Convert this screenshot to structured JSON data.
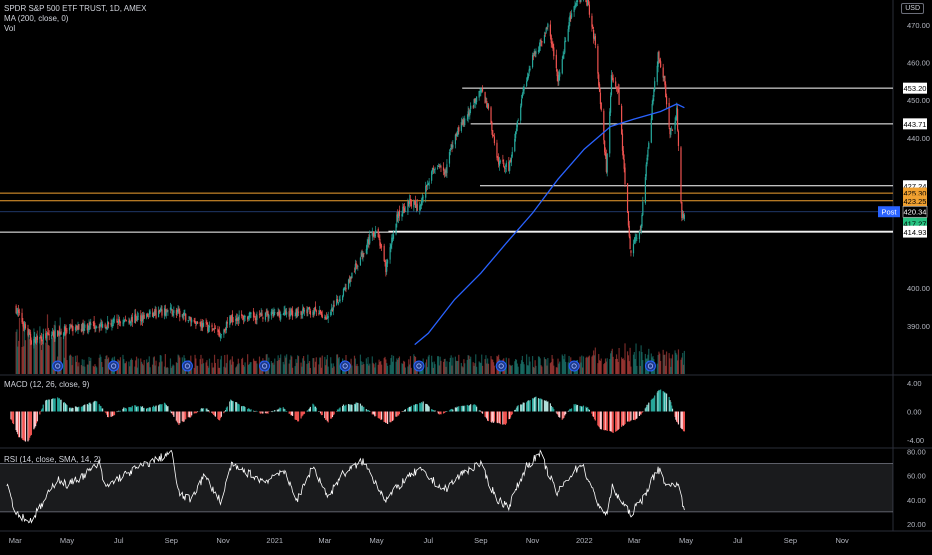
{
  "header": {
    "title": "SPDR S&P 500 ETF TRUST, 1D, AMEX",
    "indicator_ma": "MA (200, close, 0)",
    "indicator_vol": "Vol",
    "currency": "USD"
  },
  "macd_label": "MACD (12, 26, close, 9)",
  "rsi_label": "RSI (14, close, SMA, 14, 2)",
  "colors": {
    "up": "#26a69a",
    "down": "#ef5350",
    "ma": "#2962ff",
    "level_white": "#ffffff",
    "level_orange": "#f0a030",
    "level_blue": "#2a4a8a",
    "rsi_line": "#ffffff",
    "grid": "#1a1a1a"
  },
  "chart_data": [
    {
      "type": "candlestick",
      "x_ticks": [
        "Mar",
        "May",
        "Jul",
        "Sep",
        "Nov",
        "2021",
        "Mar",
        "May",
        "Jul",
        "Sep",
        "Nov",
        "2022",
        "Mar",
        "May",
        "Jul",
        "Sep",
        "Nov"
      ],
      "y_ticks": [
        390,
        400,
        410,
        420,
        430,
        440,
        450,
        460,
        470
      ],
      "y_tick_labels": [
        "390.00",
        "400.00",
        "",
        "",
        "",
        "440.00",
        "450.00",
        "460.00",
        "470.00"
      ],
      "ylim": [
        385,
        478
      ],
      "price_path": [
        [
          "2020-03-01",
          395
        ],
        [
          "2020-03-20",
          386
        ],
        [
          "2020-05-01",
          389
        ],
        [
          "2020-07-01",
          391
        ],
        [
          "2020-09-01",
          394
        ],
        [
          "2020-10-30",
          388
        ],
        [
          "2020-11-10",
          392
        ],
        [
          "2021-01-01",
          393
        ],
        [
          "2021-02-15",
          394
        ],
        [
          "2021-03-05",
          392
        ],
        [
          "2021-04-01",
          403
        ],
        [
          "2021-04-20",
          412
        ],
        [
          "2021-05-01",
          416
        ],
        [
          "2021-05-12",
          405
        ],
        [
          "2021-05-25",
          419
        ],
        [
          "2021-06-10",
          423
        ],
        [
          "2021-06-20",
          421
        ],
        [
          "2021-06-30",
          428
        ],
        [
          "2021-07-10",
          433
        ],
        [
          "2021-07-20",
          430
        ],
        [
          "2021-08-01",
          441
        ],
        [
          "2021-08-15",
          445
        ],
        [
          "2021-08-31",
          453
        ],
        [
          "2021-09-10",
          448
        ],
        [
          "2021-09-20",
          434
        ],
        [
          "2021-10-04",
          432
        ],
        [
          "2021-10-20",
          452
        ],
        [
          "2021-11-01",
          461
        ],
        [
          "2021-11-20",
          470
        ],
        [
          "2021-12-01",
          455
        ],
        [
          "2021-12-15",
          472
        ],
        [
          "2021-12-29",
          478
        ],
        [
          "2022-01-05",
          476
        ],
        [
          "2022-01-14",
          465
        ],
        [
          "2022-01-27",
          432
        ],
        [
          "2022-02-02",
          456
        ],
        [
          "2022-02-10",
          452
        ],
        [
          "2022-02-24",
          410
        ],
        [
          "2022-03-08",
          415
        ],
        [
          "2022-03-20",
          444
        ],
        [
          "2022-03-29",
          462
        ],
        [
          "2022-04-05",
          456
        ],
        [
          "2022-04-12",
          440
        ],
        [
          "2022-04-20",
          447
        ],
        [
          "2022-04-26",
          418
        ],
        [
          "2022-04-29",
          420.34
        ]
      ],
      "ma200_path": [
        [
          "2021-06-15",
          385
        ],
        [
          "2021-07-01",
          388
        ],
        [
          "2021-08-01",
          397
        ],
        [
          "2021-09-01",
          404
        ],
        [
          "2021-10-01",
          412
        ],
        [
          "2021-11-01",
          420
        ],
        [
          "2021-12-01",
          429
        ],
        [
          "2022-01-01",
          437
        ],
        [
          "2022-02-01",
          443
        ],
        [
          "2022-03-01",
          445
        ],
        [
          "2022-04-01",
          447
        ],
        [
          "2022-04-20",
          449
        ],
        [
          "2022-04-29",
          448
        ]
      ],
      "price_levels": [
        {
          "label": "453.20",
          "value": 453.2,
          "color": "white",
          "from": "2021-08-10"
        },
        {
          "label": "443.71",
          "value": 443.71,
          "color": "white",
          "from": "2021-08-20"
        },
        {
          "label": "427.24",
          "value": 427.24,
          "color": "white",
          "from": "2021-08-31"
        },
        {
          "label": "425.30",
          "value": 425.3,
          "color": "orange",
          "from": null
        },
        {
          "label": "423.25",
          "value": 423.25,
          "color": "orange",
          "from": null
        },
        {
          "label": "420.34",
          "value": 420.34,
          "color": "blue",
          "from": null,
          "badge": "Post"
        },
        {
          "label": "417.27",
          "value": 417.27,
          "color": "green",
          "from": null
        },
        {
          "label": "415.16",
          "value": 415.16,
          "color": "white",
          "from": "2021-05-15"
        },
        {
          "label": "414.93",
          "value": 414.93,
          "color": "white",
          "from": null
        }
      ],
      "event_markers": [
        "2020-04-20",
        "2020-06-25",
        "2020-09-20",
        "2020-12-20",
        "2021-03-25",
        "2021-06-20",
        "2021-09-25",
        "2021-12-20",
        "2022-03-20"
      ]
    },
    {
      "type": "histogram",
      "name": "MACD",
      "y_ticks": [
        4,
        0,
        -4
      ],
      "y_tick_labels": [
        "4.00",
        "0.00",
        "-4.00"
      ],
      "ylim": [
        -5,
        5
      ],
      "path": [
        [
          "2020-02-25",
          -1
        ],
        [
          "2020-03-05",
          -3.5
        ],
        [
          "2020-03-15",
          -4.5
        ],
        [
          "2020-03-25",
          -2
        ],
        [
          "2020-04-05",
          1.5
        ],
        [
          "2020-04-20",
          2
        ],
        [
          "2020-05-05",
          0.5
        ],
        [
          "2020-05-20",
          0.8
        ],
        [
          "2020-06-05",
          1.5
        ],
        [
          "2020-06-20",
          -1
        ],
        [
          "2020-07-05",
          0.4
        ],
        [
          "2020-07-20",
          0.8
        ],
        [
          "2020-08-05",
          0.5
        ],
        [
          "2020-08-25",
          1.2
        ],
        [
          "2020-09-10",
          -1.8
        ],
        [
          "2020-09-25",
          -0.6
        ],
        [
          "2020-10-10",
          0.6
        ],
        [
          "2020-10-28",
          -1.2
        ],
        [
          "2020-11-10",
          1.6
        ],
        [
          "2020-11-30",
          0.4
        ],
        [
          "2020-12-20",
          -0.4
        ],
        [
          "2021-01-10",
          0.6
        ],
        [
          "2021-01-28",
          -1.4
        ],
        [
          "2021-02-15",
          1
        ],
        [
          "2021-03-05",
          -1.5
        ],
        [
          "2021-03-20",
          0.8
        ],
        [
          "2021-04-10",
          1.2
        ],
        [
          "2021-05-01",
          -0.8
        ],
        [
          "2021-05-15",
          -1.8
        ],
        [
          "2021-06-05",
          0.5
        ],
        [
          "2021-06-25",
          1.3
        ],
        [
          "2021-07-15",
          -0.4
        ],
        [
          "2021-08-05",
          0.7
        ],
        [
          "2021-08-25",
          1
        ],
        [
          "2021-09-10",
          -1.4
        ],
        [
          "2021-09-30",
          -1.8
        ],
        [
          "2021-10-15",
          0.8
        ],
        [
          "2021-11-05",
          2
        ],
        [
          "2021-11-20",
          1.4
        ],
        [
          "2021-12-05",
          -1.2
        ],
        [
          "2021-12-20",
          1
        ],
        [
          "2022-01-05",
          0.6
        ],
        [
          "2022-01-20",
          -2.5
        ],
        [
          "2022-02-05",
          -3
        ],
        [
          "2022-02-20",
          -1.5
        ],
        [
          "2022-03-05",
          -1
        ],
        [
          "2022-03-20",
          1.5
        ],
        [
          "2022-04-01",
          3.2
        ],
        [
          "2022-04-10",
          2.4
        ],
        [
          "2022-04-20",
          -1.5
        ],
        [
          "2022-04-29",
          -2.8
        ]
      ]
    },
    {
      "type": "line",
      "name": "RSI",
      "y_ticks": [
        80,
        60,
        40,
        20
      ],
      "y_tick_labels": [
        "80.00",
        "60.00",
        "40.00",
        "20.00"
      ],
      "ylim": [
        15,
        82
      ],
      "band": [
        30,
        70
      ],
      "path": [
        [
          "2020-02-20",
          55
        ],
        [
          "2020-03-01",
          30
        ],
        [
          "2020-03-18",
          22
        ],
        [
          "2020-04-01",
          35
        ],
        [
          "2020-04-20",
          58
        ],
        [
          "2020-05-01",
          52
        ],
        [
          "2020-05-20",
          60
        ],
        [
          "2020-06-08",
          70
        ],
        [
          "2020-06-15",
          50
        ],
        [
          "2020-07-01",
          58
        ],
        [
          "2020-07-20",
          65
        ],
        [
          "2020-08-20",
          75
        ],
        [
          "2020-09-01",
          80
        ],
        [
          "2020-09-10",
          45
        ],
        [
          "2020-09-23",
          40
        ],
        [
          "2020-10-10",
          60
        ],
        [
          "2020-10-30",
          38
        ],
        [
          "2020-11-10",
          68
        ],
        [
          "2020-12-01",
          62
        ],
        [
          "2020-12-20",
          55
        ],
        [
          "2021-01-10",
          65
        ],
        [
          "2021-01-28",
          40
        ],
        [
          "2021-02-15",
          68
        ],
        [
          "2021-03-05",
          42
        ],
        [
          "2021-03-20",
          60
        ],
        [
          "2021-04-15",
          72
        ],
        [
          "2021-05-12",
          40
        ],
        [
          "2021-06-01",
          55
        ],
        [
          "2021-06-20",
          65
        ],
        [
          "2021-07-20",
          48
        ],
        [
          "2021-08-10",
          62
        ],
        [
          "2021-08-31",
          70
        ],
        [
          "2021-09-20",
          40
        ],
        [
          "2021-10-04",
          35
        ],
        [
          "2021-10-25",
          68
        ],
        [
          "2021-11-10",
          78
        ],
        [
          "2021-11-30",
          45
        ],
        [
          "2021-12-15",
          60
        ],
        [
          "2021-12-29",
          70
        ],
        [
          "2022-01-15",
          40
        ],
        [
          "2022-01-27",
          27
        ],
        [
          "2022-02-03",
          50
        ],
        [
          "2022-02-24",
          28
        ],
        [
          "2022-03-10",
          40
        ],
        [
          "2022-03-29",
          66
        ],
        [
          "2022-04-10",
          50
        ],
        [
          "2022-04-20",
          55
        ],
        [
          "2022-04-29",
          33
        ]
      ]
    }
  ]
}
